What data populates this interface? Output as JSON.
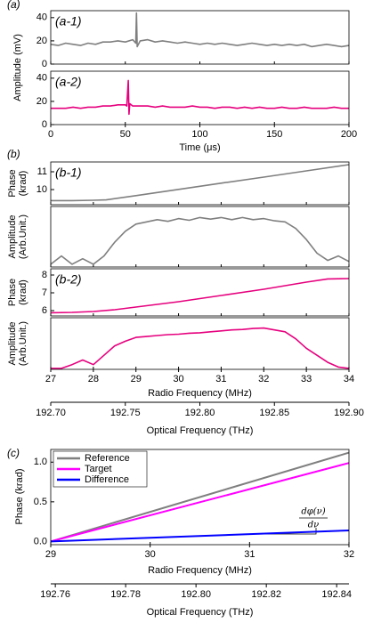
{
  "chart_data": [
    {
      "type": "line",
      "panel_label": "(a)",
      "xlabel": "Time (μs)",
      "ylabel": "Amplitude (mV)",
      "xlim": [
        0,
        200
      ],
      "xticks": [
        0,
        50,
        100,
        150,
        200
      ],
      "subplots": [
        {
          "label": "(a-1)",
          "ylim": [
            0,
            46
          ],
          "yticks": [
            0,
            20,
            40
          ],
          "series": [
            {
              "color": "#7f7f7f",
              "x": [
                0,
                5,
                10,
                15,
                20,
                25,
                30,
                35,
                40,
                45,
                50,
                55,
                57,
                57.5,
                58,
                60,
                65,
                70,
                75,
                80,
                85,
                90,
                95,
                100,
                105,
                110,
                115,
                120,
                125,
                130,
                135,
                140,
                145,
                150,
                155,
                160,
                165,
                170,
                175,
                180,
                185,
                190,
                195,
                200
              ],
              "values": [
                17,
                16,
                18,
                17,
                16,
                18,
                17,
                19,
                19,
                20,
                19,
                21,
                18,
                44,
                15,
                20,
                21,
                19,
                20,
                19,
                18,
                19,
                18,
                17,
                18,
                17,
                18,
                17,
                16,
                17,
                18,
                17,
                16,
                17,
                16,
                17,
                16,
                17,
                15,
                16,
                17,
                16,
                15,
                16
              ]
            }
          ]
        },
        {
          "label": "(a-2)",
          "ylim": [
            0,
            46
          ],
          "yticks": [
            0,
            20,
            40
          ],
          "series": [
            {
              "color": "#e6007e",
              "x": [
                0,
                5,
                10,
                15,
                20,
                25,
                30,
                35,
                40,
                45,
                50,
                51,
                52,
                52.5,
                53,
                54,
                55,
                60,
                65,
                70,
                75,
                80,
                85,
                90,
                95,
                100,
                105,
                110,
                115,
                120,
                125,
                130,
                135,
                140,
                145,
                150,
                155,
                160,
                165,
                170,
                175,
                180,
                185,
                190,
                195,
                200
              ],
              "values": [
                14,
                14,
                14,
                15,
                14,
                15,
                15,
                16,
                16,
                17,
                17,
                16,
                38,
                9,
                18,
                17,
                16,
                16,
                16,
                15,
                16,
                15,
                15,
                15,
                16,
                15,
                15,
                14,
                15,
                15,
                14,
                15,
                14,
                15,
                14,
                14,
                15,
                14,
                14,
                15,
                14,
                14,
                14,
                15,
                14,
                14
              ]
            }
          ]
        }
      ]
    },
    {
      "type": "line",
      "panel_label": "(b)",
      "xlabel": "Radio Frequency (MHz)",
      "xlim": [
        27,
        34
      ],
      "xticks": [
        27,
        28,
        29,
        30,
        31,
        32,
        33,
        34
      ],
      "x2label": "Optical Frequency (THz)",
      "x2lim": [
        192.7,
        192.9
      ],
      "x2ticks": [
        {
          "value": 192.7,
          "label": "192.70"
        },
        192.75,
        {
          "value": 192.8,
          "label": "192.80"
        },
        192.85,
        {
          "value": 192.9,
          "label": "192.90"
        }
      ],
      "subplots": [
        {
          "label": "(b-1)",
          "ylabel": [
            "Phase",
            "(krad)"
          ],
          "ylim": [
            9.15,
            11.55
          ],
          "yticks": [
            10,
            11
          ],
          "series": [
            {
              "color": "#7f7f7f",
              "x": [
                27,
                27.5,
                28,
                28.3,
                29,
                30,
                31,
                32,
                33,
                34
              ],
              "values": [
                9.38,
                9.38,
                9.4,
                9.42,
                9.66,
                10.01,
                10.36,
                10.7,
                11.05,
                11.4
              ]
            }
          ]
        },
        {
          "ylabel": [
            "Amplitude",
            "(Arb.Unit.)"
          ],
          "ylim": [
            0,
            1.1
          ],
          "series": [
            {
              "color": "#7f7f7f",
              "x": [
                27,
                27.25,
                27.5,
                27.75,
                28,
                28.25,
                28.5,
                28.75,
                29,
                29.25,
                29.5,
                29.75,
                30,
                30.25,
                30.5,
                30.75,
                31,
                31.25,
                31.5,
                31.75,
                32,
                32.25,
                32.5,
                32.75,
                33,
                33.25,
                33.5,
                33.75,
                34
              ],
              "values": [
                0.05,
                0.2,
                0.05,
                0.15,
                0.05,
                0.2,
                0.45,
                0.65,
                0.78,
                0.82,
                0.86,
                0.83,
                0.88,
                0.85,
                0.9,
                0.87,
                0.9,
                0.86,
                0.9,
                0.86,
                0.88,
                0.84,
                0.82,
                0.7,
                0.5,
                0.25,
                0.12,
                0.2,
                0.1
              ]
            }
          ]
        },
        {
          "label": "(b-2)",
          "ylabel": [
            "Phase",
            "(krad)"
          ],
          "ylim": [
            5.7,
            8.35
          ],
          "yticks": [
            6,
            7,
            8
          ],
          "series": [
            {
              "color": "#e6007e",
              "x": [
                27,
                27.5,
                28,
                28.5,
                29,
                30,
                31,
                32,
                33,
                33.5,
                34
              ],
              "values": [
                5.88,
                5.9,
                5.95,
                6.05,
                6.2,
                6.5,
                6.85,
                7.2,
                7.6,
                7.78,
                7.8
              ]
            }
          ]
        },
        {
          "ylabel": [
            "Amplitude",
            "(Arb.Unit.)"
          ],
          "ylim": [
            0,
            1.1
          ],
          "series": [
            {
              "color": "#e6007e",
              "x": [
                27,
                27.25,
                27.5,
                27.75,
                28,
                28.25,
                28.5,
                28.75,
                29,
                29.25,
                29.5,
                29.75,
                30,
                30.25,
                30.5,
                30.75,
                31,
                31.25,
                31.5,
                31.75,
                32,
                32.25,
                32.5,
                32.75,
                33,
                33.25,
                33.5,
                33.75,
                34
              ],
              "values": [
                0.02,
                0.02,
                0.1,
                0.2,
                0.1,
                0.3,
                0.5,
                0.6,
                0.68,
                0.7,
                0.72,
                0.74,
                0.75,
                0.77,
                0.78,
                0.8,
                0.82,
                0.84,
                0.85,
                0.87,
                0.88,
                0.84,
                0.8,
                0.65,
                0.45,
                0.3,
                0.15,
                0.05,
                0.02
              ]
            }
          ]
        }
      ]
    },
    {
      "type": "line",
      "panel_label": "(c)",
      "xlabel": "Radio Frequency (MHz)",
      "ylabel": "Phase (krad)",
      "xlim": [
        29,
        32
      ],
      "xticks": [
        29,
        30,
        31,
        32
      ],
      "x2label": "Optical Frequency (THz)",
      "x2lim": [
        192.7587,
        192.8435
      ],
      "x2ticks": [
        192.76,
        192.78,
        {
          "value": 192.8,
          "label": "192.80"
        },
        192.82,
        192.84
      ],
      "legend": "upper left",
      "annotation": {
        "numerator": "dφ(ν)",
        "denominator": "dν"
      },
      "subplots": [
        {
          "ylim": [
            -0.04,
            1.16
          ],
          "yticks": [
            {
              "value": 0,
              "label": "0.0"
            },
            0.5,
            {
              "value": 1,
              "label": "1.0"
            }
          ],
          "series": [
            {
              "name": "Reference",
              "color": "#7f7f7f",
              "x": [
                29,
                32
              ],
              "values": [
                0,
                1.12
              ]
            },
            {
              "name": "Target",
              "color": "#ff00ff",
              "x": [
                29,
                32
              ],
              "values": [
                0,
                0.99
              ]
            },
            {
              "name": "Difference",
              "color": "#0000ff",
              "x": [
                29,
                32
              ],
              "values": [
                0,
                0.14
              ]
            }
          ]
        }
      ]
    }
  ]
}
